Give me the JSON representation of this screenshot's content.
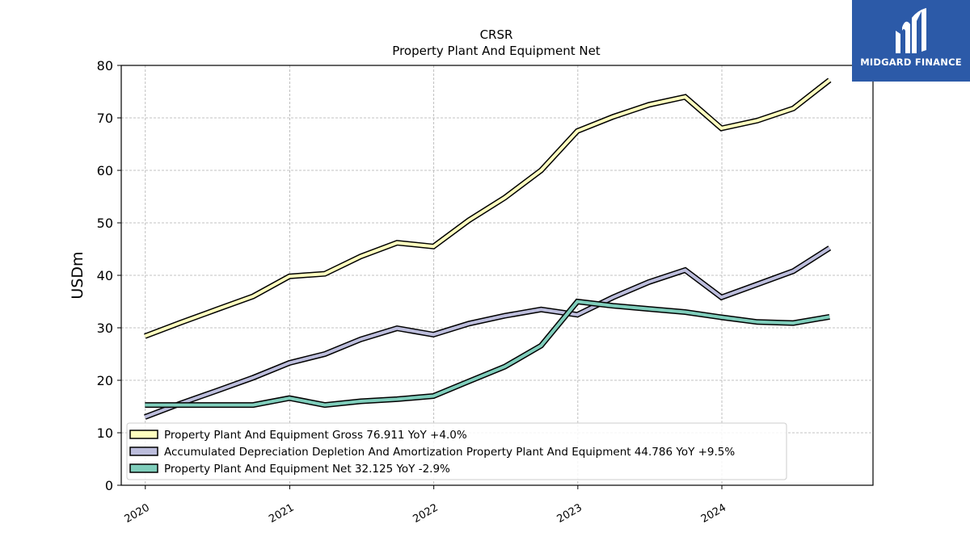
{
  "brand": {
    "name": "MIDGARD FINANCE",
    "color": "#2c5aa8"
  },
  "chart_data": {
    "type": "line",
    "title": "CRSR",
    "subtitle": "Property Plant And Equipment Net",
    "xlabel": "",
    "ylabel": "USDm",
    "ylim": [
      0,
      80
    ],
    "yticks": [
      0,
      10,
      20,
      30,
      40,
      50,
      60,
      70,
      80
    ],
    "xticks": [
      "2020",
      "2021",
      "2022",
      "2023",
      "2024"
    ],
    "grid": true,
    "legend_position": "lower-left",
    "x": [
      "2019-12-31",
      "2020-03-31",
      "2020-06-30",
      "2020-09-30",
      "2020-12-31",
      "2021-03-31",
      "2021-06-30",
      "2021-09-30",
      "2021-12-31",
      "2022-03-31",
      "2022-06-30",
      "2022-09-30",
      "2022-12-31",
      "2023-03-31",
      "2023-06-30",
      "2023-09-30",
      "2023-12-31",
      "2024-03-31",
      "2024-06-30",
      "2024-09-30"
    ],
    "series": [
      {
        "name": "Property Plant And Equipment Gross",
        "legend_label": "Property Plant And Equipment Gross  76.911 YoY +4.0%",
        "color": "#ffffbf",
        "values": [
          28.4,
          31.0,
          33.5,
          36.0,
          39.8,
          40.3,
          43.6,
          46.2,
          45.5,
          50.5,
          54.8,
          60.0,
          67.5,
          70.2,
          72.5,
          74.0,
          68.0,
          69.5,
          71.8,
          77.2
        ]
      },
      {
        "name": "Accumulated Depreciation Depletion And Amortization Property Plant And Equipment",
        "legend_label": "Accumulated Depreciation Depletion And Amortization Property Plant And Equipment  44.786 YoY +9.5%",
        "color": "#bcbddc",
        "values": [
          13.0,
          15.6,
          18.0,
          20.5,
          23.3,
          25.0,
          27.8,
          29.9,
          28.7,
          30.8,
          32.3,
          33.5,
          32.5,
          35.8,
          38.7,
          41.0,
          35.8,
          38.3,
          40.8,
          45.2
        ]
      },
      {
        "name": "Property Plant And Equipment Net",
        "legend_label": "Property Plant And Equipment Net  32.125 YoY -2.9%",
        "color": "#7fcdbb",
        "values": [
          15.3,
          15.3,
          15.3,
          15.3,
          16.6,
          15.3,
          16.0,
          16.4,
          17.0,
          19.8,
          22.6,
          26.6,
          35.0,
          34.2,
          33.6,
          33.0,
          32.0,
          31.1,
          30.9,
          32.1
        ]
      }
    ]
  }
}
